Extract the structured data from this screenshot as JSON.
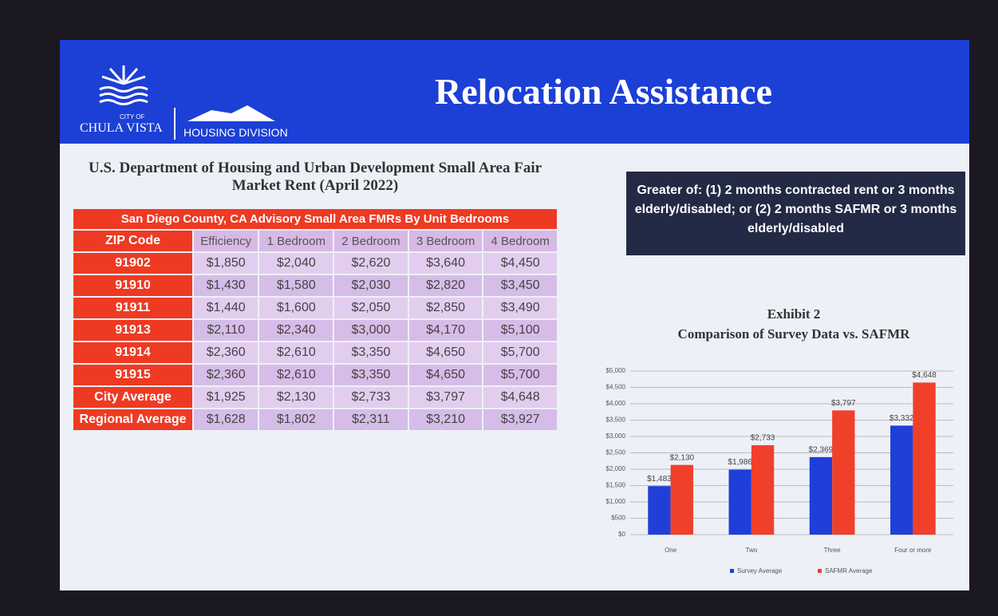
{
  "header": {
    "logo_city_of": "CITY OF",
    "logo_city": "CHULA VISTA",
    "logo_division": "HOUSING DIVISION",
    "title": "Relocation Assistance"
  },
  "table": {
    "title": "U.S. Department of Housing and Urban Development Small Area Fair Market Rent (April 2022)",
    "caption": "San Diego County, CA Advisory Small Area FMRs By Unit Bedrooms",
    "columns": [
      "ZIP Code",
      "Efficiency",
      "1 Bedroom",
      "2 Bedroom",
      "3 Bedroom",
      "4 Bedroom"
    ],
    "rows": [
      [
        "91902",
        "$1,850",
        "$2,040",
        "$2,620",
        "$3,640",
        "$4,450"
      ],
      [
        "91910",
        "$1,430",
        "$1,580",
        "$2,030",
        "$2,820",
        "$3,450"
      ],
      [
        "91911",
        "$1,440",
        "$1,600",
        "$2,050",
        "$2,850",
        "$3,490"
      ],
      [
        "91913",
        "$2,110",
        "$2,340",
        "$3,000",
        "$4,170",
        "$5,100"
      ],
      [
        "91914",
        "$2,360",
        "$2,610",
        "$3,350",
        "$4,650",
        "$5,700"
      ],
      [
        "91915",
        "$2,360",
        "$2,610",
        "$3,350",
        "$4,650",
        "$5,700"
      ],
      [
        "City Average",
        "$1,925",
        "$2,130",
        "$2,733",
        "$3,797",
        "$4,648"
      ],
      [
        "Regional Average",
        "$1,628",
        "$1,802",
        "$2,311",
        "$3,210",
        "$3,927"
      ]
    ]
  },
  "note": "Greater of: (1) 2 months contracted rent or 3 months elderly/disabled; or (2) 2 months SAFMR or 3 months elderly/disabled",
  "chart_data": {
    "type": "bar",
    "title": "Exhibit 2",
    "subtitle": "Comparison of Survey Data vs. SAFMR",
    "categories": [
      "One",
      "Two",
      "Three",
      "Four or more"
    ],
    "series": [
      {
        "name": "Survey Average",
        "color": "#1f3fd8",
        "values": [
          1483,
          1986,
          2369,
          3332
        ],
        "value_labels": [
          "$1,483",
          "$1,986",
          "$2,369",
          "$3,332"
        ]
      },
      {
        "name": "SAFMR Average",
        "color": "#f0402a",
        "values": [
          2130,
          2733,
          3797,
          4648
        ],
        "value_labels": [
          "$2,130",
          "$2,733",
          "$3,797",
          "$4,648"
        ]
      }
    ],
    "ylim": [
      0,
      5000
    ],
    "yticks": [
      {
        "value": 0,
        "label": "$0"
      },
      {
        "value": 500,
        "label": "$500"
      },
      {
        "value": 1000,
        "label": "$1,000"
      },
      {
        "value": 1500,
        "label": "$1,500"
      },
      {
        "value": 2000,
        "label": "$2,000"
      },
      {
        "value": 2500,
        "label": "$2,500"
      },
      {
        "value": 3000,
        "label": "$3,000"
      },
      {
        "value": 3500,
        "label": "$3,500"
      },
      {
        "value": 4000,
        "label": "$4,000"
      },
      {
        "value": 4500,
        "label": "$4,500"
      },
      {
        "value": 5000,
        "label": "$5,000"
      }
    ],
    "grid": true
  }
}
